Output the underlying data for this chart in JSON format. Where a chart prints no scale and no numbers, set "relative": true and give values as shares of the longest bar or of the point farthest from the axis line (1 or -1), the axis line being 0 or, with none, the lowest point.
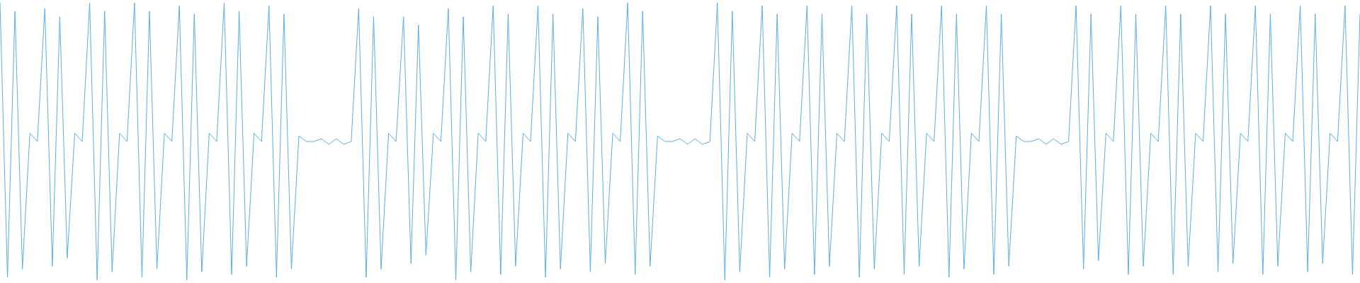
{
  "chart_data": {
    "type": "line",
    "relative": true,
    "color": "#5aaee3",
    "categories": [
      null,
      null,
      null,
      null,
      null,
      null,
      null,
      null,
      null,
      null,
      null,
      null,
      null,
      null,
      null,
      null,
      null,
      null,
      null,
      null,
      null,
      null,
      null,
      null,
      null,
      null,
      null,
      null,
      null,
      null,
      null,
      null,
      null,
      null,
      null,
      null,
      null,
      null,
      null,
      null,
      null,
      null,
      null,
      null,
      null,
      null,
      null,
      null,
      null,
      null,
      null,
      null,
      null,
      null,
      null,
      null,
      null,
      null,
      null,
      null,
      null,
      null,
      null,
      null,
      null,
      null,
      null,
      null,
      null,
      null,
      null,
      null,
      null,
      null,
      null,
      null,
      null,
      null,
      null,
      null,
      null,
      null,
      null,
      null,
      null,
      null,
      null,
      null,
      null,
      null,
      null,
      null,
      null,
      null,
      null,
      null,
      null,
      null,
      null,
      null,
      null,
      null,
      null,
      null,
      null,
      null,
      null,
      null,
      null,
      null,
      null,
      null,
      null,
      null,
      null,
      null,
      null,
      null,
      null,
      null,
      null,
      null,
      null,
      null,
      null,
      null,
      null,
      null,
      null,
      null,
      null,
      null,
      null,
      null,
      null,
      null,
      null,
      null,
      null,
      null,
      null,
      null,
      null,
      null,
      null,
      null,
      null,
      null,
      null,
      null,
      null,
      null,
      null,
      null,
      null,
      null,
      null,
      null,
      null,
      null,
      null,
      null,
      null,
      null,
      null,
      null,
      null,
      null,
      null,
      null,
      null,
      null,
      null,
      null,
      null,
      null,
      null,
      null,
      null,
      null,
      null,
      null,
      null
    ],
    "values": [
      1,
      0.01,
      0.97,
      0.04,
      0.53,
      0.5,
      0.98,
      0.05,
      0.95,
      0.08,
      0.53,
      0.5,
      1,
      0,
      0.97,
      0.03,
      0.53,
      0.5,
      1,
      0.01,
      0.97,
      0.04,
      0.53,
      0.5,
      0.99,
      0,
      0.96,
      0.03,
      0.53,
      0.5,
      1,
      0.02,
      0.97,
      0.05,
      0.53,
      0.5,
      0.99,
      0.01,
      0.96,
      0.04,
      0.52,
      0.5,
      0.5,
      0.51,
      0.49,
      0.51,
      0.49,
      0.5,
      0.98,
      0.01,
      0.95,
      0.04,
      0.53,
      0.5,
      0.95,
      0.06,
      0.92,
      0.09,
      0.53,
      0.5,
      0.98,
      0,
      0.95,
      0.03,
      0.53,
      0.5,
      0.99,
      0.02,
      0.96,
      0.05,
      0.53,
      0.5,
      0.99,
      0.01,
      0.96,
      0.04,
      0.53,
      0.5,
      0.98,
      0.03,
      0.95,
      0.06,
      0.53,
      0.5,
      1,
      0.02,
      0.97,
      0.05,
      0.52,
      0.5,
      0.5,
      0.51,
      0.49,
      0.51,
      0.49,
      0.5,
      1,
      0,
      0.97,
      0.03,
      0.53,
      0.5,
      0.99,
      0.01,
      0.96,
      0.04,
      0.53,
      0.5,
      0.99,
      0.02,
      0.96,
      0.05,
      0.53,
      0.5,
      0.99,
      0.01,
      0.96,
      0.04,
      0.53,
      0.5,
      0.99,
      0.02,
      0.96,
      0.05,
      0.53,
      0.5,
      0.99,
      0.01,
      0.96,
      0.04,
      0.53,
      0.5,
      0.99,
      0.02,
      0.96,
      0.05,
      0.52,
      0.5,
      0.5,
      0.51,
      0.49,
      0.51,
      0.49,
      0.5,
      0.99,
      0.04,
      0.96,
      0.07,
      0.53,
      0.5,
      0.99,
      0.02,
      0.96,
      0.05,
      0.53,
      0.5,
      0.99,
      0.02,
      0.96,
      0.05,
      0.53,
      0.5,
      0.99,
      0.03,
      0.96,
      0.06,
      0.53,
      0.5,
      0.99,
      0.02,
      0.96,
      0.05,
      0.53,
      0.5,
      0.99,
      0.03,
      0.96,
      0.06,
      0.53,
      0.5,
      0.99,
      0.02,
      0.96
    ]
  }
}
